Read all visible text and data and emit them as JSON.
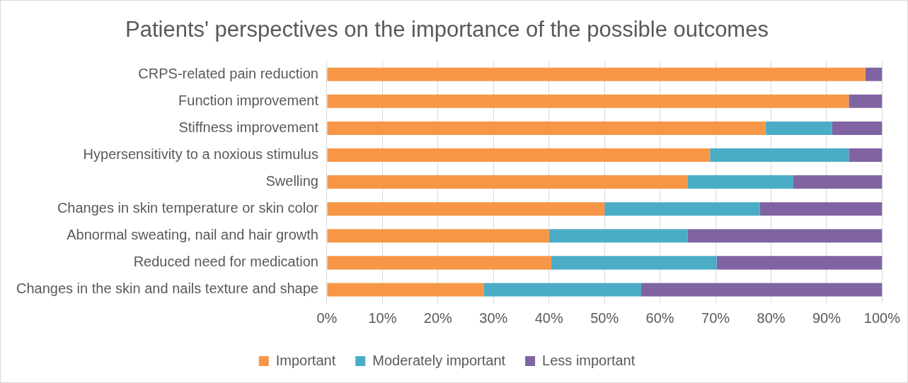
{
  "chart_data": {
    "type": "bar",
    "orientation": "horizontal",
    "stacked": true,
    "title": "Patients' perspectives on the importance of the possible outcomes",
    "categories": [
      "CRPS-related pain reduction",
      "Function improvement",
      "Stiffness improvement",
      "Hypersensitivity to a noxious stimulus",
      "Swelling",
      "Changes in skin temperature or skin color",
      "Abnormal sweating, nail and hair growth",
      "Reduced need for medication",
      "Changes in the skin and nails texture and shape"
    ],
    "series": [
      {
        "name": "Important",
        "color": "#f79646",
        "values": [
          97,
          94,
          79,
          69,
          65,
          50,
          40,
          40.4,
          28.3
        ]
      },
      {
        "name": "Moderately important",
        "color": "#4bacc6",
        "values": [
          0,
          0,
          12,
          25,
          19,
          28,
          25,
          29.8,
          28.3
        ]
      },
      {
        "name": "Less important",
        "color": "#8064a2",
        "values": [
          3,
          6,
          9,
          6,
          16,
          22,
          35,
          29.8,
          43.4
        ]
      }
    ],
    "xlim": [
      0,
      100
    ],
    "xticks": [
      {
        "value": 0,
        "label": "0%"
      },
      {
        "value": 10,
        "label": "10%"
      },
      {
        "value": 20,
        "label": "20%"
      },
      {
        "value": 30,
        "label": "30%"
      },
      {
        "value": 40,
        "label": "40%"
      },
      {
        "value": 50,
        "label": "50%"
      },
      {
        "value": 60,
        "label": "60%"
      },
      {
        "value": 70,
        "label": "70%"
      },
      {
        "value": 80,
        "label": "80%"
      },
      {
        "value": 90,
        "label": "90%"
      },
      {
        "value": 100,
        "label": "100%"
      }
    ],
    "grid": "x",
    "legend": "bottom"
  }
}
